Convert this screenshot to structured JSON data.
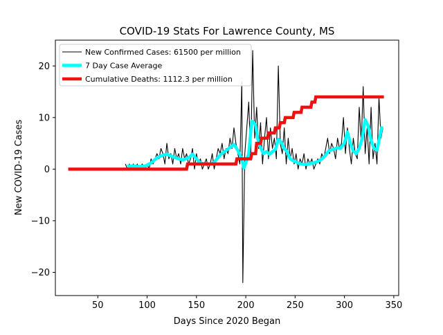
{
  "chart_data": {
    "type": "line",
    "title": "COVID-19 Stats For Lawrence County, MS",
    "xlabel": "Days Since 2020 Began",
    "ylabel": "New COVID-19 Cases",
    "xlim": [
      7,
      355
    ],
    "ylim": [
      -24.5,
      25
    ],
    "xticks": [
      50,
      100,
      150,
      200,
      250,
      300,
      350
    ],
    "yticks": [
      -20,
      -10,
      0,
      10,
      20
    ],
    "grid": false,
    "legend_position": "top-left",
    "series": [
      {
        "name": "New Confirmed Cases: 61500 per million",
        "color": "#000000",
        "points": [
          [
            78,
            1
          ],
          [
            80,
            0
          ],
          [
            82,
            1
          ],
          [
            84,
            0
          ],
          [
            86,
            1
          ],
          [
            88,
            0
          ],
          [
            90,
            1
          ],
          [
            92,
            0
          ],
          [
            95,
            1
          ],
          [
            98,
            0
          ],
          [
            100,
            1
          ],
          [
            102,
            0
          ],
          [
            104,
            2
          ],
          [
            106,
            1
          ],
          [
            108,
            2
          ],
          [
            110,
            3
          ],
          [
            112,
            2
          ],
          [
            114,
            4
          ],
          [
            116,
            3
          ],
          [
            118,
            1
          ],
          [
            120,
            5
          ],
          [
            122,
            2
          ],
          [
            124,
            3
          ],
          [
            126,
            1
          ],
          [
            128,
            4
          ],
          [
            130,
            2
          ],
          [
            132,
            3
          ],
          [
            134,
            1
          ],
          [
            136,
            4
          ],
          [
            138,
            2
          ],
          [
            140,
            3
          ],
          [
            142,
            1
          ],
          [
            144,
            2
          ],
          [
            146,
            4
          ],
          [
            148,
            0
          ],
          [
            150,
            3
          ],
          [
            152,
            1
          ],
          [
            154,
            2
          ],
          [
            156,
            0
          ],
          [
            158,
            1
          ],
          [
            160,
            2
          ],
          [
            162,
            0
          ],
          [
            164,
            1
          ],
          [
            166,
            3
          ],
          [
            168,
            0
          ],
          [
            170,
            2
          ],
          [
            172,
            4
          ],
          [
            174,
            3
          ],
          [
            176,
            5
          ],
          [
            178,
            2
          ],
          [
            180,
            4
          ],
          [
            182,
            3
          ],
          [
            184,
            6
          ],
          [
            186,
            4
          ],
          [
            188,
            8
          ],
          [
            190,
            5
          ],
          [
            192,
            3
          ],
          [
            194,
            1
          ],
          [
            196,
            17
          ],
          [
            197,
            -22
          ],
          [
            199,
            3
          ],
          [
            201,
            8
          ],
          [
            203,
            13
          ],
          [
            205,
            2
          ],
          [
            207,
            23
          ],
          [
            209,
            6
          ],
          [
            211,
            12
          ],
          [
            213,
            4
          ],
          [
            215,
            9
          ],
          [
            217,
            1
          ],
          [
            219,
            6
          ],
          [
            221,
            10
          ],
          [
            223,
            2
          ],
          [
            225,
            8
          ],
          [
            227,
            4
          ],
          [
            229,
            6
          ],
          [
            231,
            2
          ],
          [
            233,
            20
          ],
          [
            235,
            5
          ],
          [
            237,
            3
          ],
          [
            239,
            8
          ],
          [
            241,
            1
          ],
          [
            243,
            6
          ],
          [
            245,
            2
          ],
          [
            247,
            4
          ],
          [
            249,
            1
          ],
          [
            251,
            3
          ],
          [
            253,
            0
          ],
          [
            255,
            2
          ],
          [
            257,
            1
          ],
          [
            259,
            3
          ],
          [
            261,
            0
          ],
          [
            263,
            2
          ],
          [
            265,
            1
          ],
          [
            267,
            2
          ],
          [
            269,
            0
          ],
          [
            271,
            1
          ],
          [
            273,
            2
          ],
          [
            275,
            1
          ],
          [
            277,
            3
          ],
          [
            279,
            2
          ],
          [
            281,
            4
          ],
          [
            283,
            6
          ],
          [
            285,
            3
          ],
          [
            287,
            5
          ],
          [
            289,
            4
          ],
          [
            291,
            2
          ],
          [
            293,
            6
          ],
          [
            295,
            4
          ],
          [
            297,
            5
          ],
          [
            299,
            10
          ],
          [
            301,
            3
          ],
          [
            303,
            8
          ],
          [
            305,
            4
          ],
          [
            307,
            1
          ],
          [
            309,
            6
          ],
          [
            311,
            3
          ],
          [
            313,
            2
          ],
          [
            315,
            12
          ],
          [
            317,
            5
          ],
          [
            319,
            16
          ],
          [
            321,
            3
          ],
          [
            323,
            8
          ],
          [
            325,
            1
          ],
          [
            327,
            12
          ],
          [
            329,
            2
          ],
          [
            331,
            5
          ],
          [
            333,
            1
          ],
          [
            335,
            14
          ],
          [
            337,
            6
          ],
          [
            339,
            8
          ]
        ]
      },
      {
        "name": "7 Day Case Average",
        "color": "#00ffff",
        "points": [
          [
            80,
            0.6
          ],
          [
            86,
            0.6
          ],
          [
            92,
            0.5
          ],
          [
            98,
            0.6
          ],
          [
            104,
            1.2
          ],
          [
            110,
            2.2
          ],
          [
            116,
            2.7
          ],
          [
            120,
            2.9
          ],
          [
            126,
            2.4
          ],
          [
            132,
            2.0
          ],
          [
            136,
            1.8
          ],
          [
            142,
            2.2
          ],
          [
            146,
            2.9
          ],
          [
            150,
            2.0
          ],
          [
            154,
            1.2
          ],
          [
            160,
            0.9
          ],
          [
            164,
            1.0
          ],
          [
            168,
            1.3
          ],
          [
            172,
            2.3
          ],
          [
            176,
            3.1
          ],
          [
            180,
            3.6
          ],
          [
            184,
            4.2
          ],
          [
            188,
            4.8
          ],
          [
            192,
            3.6
          ],
          [
            196,
            2.0
          ],
          [
            198,
            0.2
          ],
          [
            200,
            1.2
          ],
          [
            203,
            3.0
          ],
          [
            206,
            9.3
          ],
          [
            208,
            9.0
          ],
          [
            210,
            8.5
          ],
          [
            212,
            6.0
          ],
          [
            214,
            4.5
          ],
          [
            216,
            3.8
          ],
          [
            218,
            3.0
          ],
          [
            221,
            3.4
          ],
          [
            224,
            2.9
          ],
          [
            227,
            3.4
          ],
          [
            230,
            3.8
          ],
          [
            233,
            5.8
          ],
          [
            236,
            5.2
          ],
          [
            239,
            4.0
          ],
          [
            242,
            3.3
          ],
          [
            245,
            2.0
          ],
          [
            248,
            1.6
          ],
          [
            252,
            1.3
          ],
          [
            256,
            1.0
          ],
          [
            260,
            0.9
          ],
          [
            264,
            1.0
          ],
          [
            268,
            1.2
          ],
          [
            272,
            1.4
          ],
          [
            276,
            1.8
          ],
          [
            280,
            2.5
          ],
          [
            284,
            3.5
          ],
          [
            288,
            3.8
          ],
          [
            292,
            4.1
          ],
          [
            296,
            4.0
          ],
          [
            300,
            5.1
          ],
          [
            303,
            7.2
          ],
          [
            306,
            5.0
          ],
          [
            309,
            3.5
          ],
          [
            312,
            3.0
          ],
          [
            315,
            4.0
          ],
          [
            318,
            6.0
          ],
          [
            321,
            9.6
          ],
          [
            324,
            8.4
          ],
          [
            327,
            5.6
          ],
          [
            330,
            4.0
          ],
          [
            333,
            3.7
          ],
          [
            336,
            6.5
          ],
          [
            338,
            8.3
          ]
        ]
      },
      {
        "name": "Cumulative Deaths: 1112.3 per million",
        "color": "#ee1111",
        "steps": [
          [
            20,
            0
          ],
          [
            140,
            0
          ],
          [
            141,
            1
          ],
          [
            190,
            1
          ],
          [
            191,
            2
          ],
          [
            205,
            2
          ],
          [
            206,
            3
          ],
          [
            210,
            3
          ],
          [
            211,
            5
          ],
          [
            215,
            5
          ],
          [
            216,
            6
          ],
          [
            222,
            6
          ],
          [
            223,
            7
          ],
          [
            229,
            7
          ],
          [
            230,
            8
          ],
          [
            234,
            8
          ],
          [
            235,
            9
          ],
          [
            239,
            9
          ],
          [
            240,
            10
          ],
          [
            248,
            10
          ],
          [
            249,
            11
          ],
          [
            256,
            11
          ],
          [
            257,
            12
          ],
          [
            266,
            12
          ],
          [
            267,
            13
          ],
          [
            270,
            13
          ],
          [
            271,
            14
          ],
          [
            340,
            14
          ]
        ]
      }
    ]
  }
}
